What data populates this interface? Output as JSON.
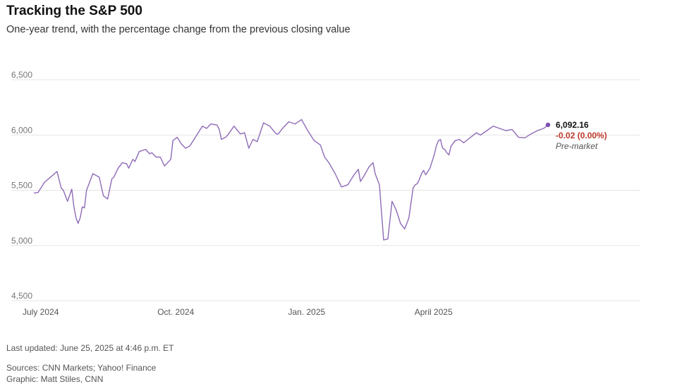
{
  "title": "Tracking the S&P 500",
  "subtitle": "One-year trend, with the percentage change from the previous closing value",
  "footer": {
    "updated": "Last updated: June 25, 2025 at 4:46 p.m. ET",
    "sources": "Sources: CNN Markets; Yahoo! Finance",
    "graphic": "Graphic: Matt Stiles, CNN"
  },
  "colors": {
    "line": "#8e6bb7",
    "dot": "#7b4fb3",
    "negative": "#c0392b"
  },
  "chart_data": {
    "type": "line",
    "title": "Tracking the S&P 500",
    "xlabel": "",
    "ylabel": "",
    "ylim": [
      4500,
      6500
    ],
    "xlim": [
      0,
      246
    ],
    "y_ticks": [
      4500,
      5000,
      5500,
      6000,
      6500
    ],
    "y_tick_labels": [
      "4,500",
      "5,000",
      "5,500",
      "6,000",
      "6,500"
    ],
    "x_ticks": [
      {
        "label": "July 2024",
        "x": 0
      },
      {
        "label": "Oct. 2024",
        "x": 64
      },
      {
        "label": "Jan. 2025",
        "x": 126
      },
      {
        "label": "April 2025",
        "x": 186
      }
    ],
    "grid": true,
    "series": [
      {
        "name": "S&P 500",
        "x": [
          0,
          2,
          5,
          8,
          11,
          13,
          14,
          16,
          18,
          19,
          20,
          21,
          22,
          23,
          24,
          25,
          26,
          27,
          28,
          30,
          31,
          33,
          35,
          37,
          38,
          40,
          42,
          44,
          45,
          47,
          48,
          50,
          53,
          55,
          56,
          58,
          60,
          62,
          65,
          66,
          68,
          70,
          72,
          74,
          76,
          78,
          80,
          82,
          84,
          87,
          88,
          89,
          91,
          92,
          95,
          98,
          100,
          102,
          104,
          106,
          109,
          112,
          115,
          116,
          118,
          121,
          124,
          127,
          130,
          133,
          136,
          138,
          140,
          143,
          146,
          149,
          152,
          154,
          155,
          157,
          159,
          161,
          162,
          164,
          166,
          168,
          170,
          172,
          174,
          176,
          178,
          180,
          181,
          182,
          183,
          184,
          185,
          186,
          188,
          190,
          191,
          192,
          193,
          194,
          195,
          196,
          197,
          198,
          200,
          202,
          204,
          206,
          208,
          210,
          212,
          215,
          218,
          221,
          224,
          227,
          230,
          233,
          236,
          239,
          242,
          244
        ],
        "values": [
          5475,
          5480,
          5570,
          5620,
          5670,
          5520,
          5500,
          5400,
          5510,
          5350,
          5250,
          5200,
          5250,
          5350,
          5340,
          5500,
          5550,
          5600,
          5650,
          5630,
          5620,
          5450,
          5420,
          5600,
          5620,
          5700,
          5750,
          5740,
          5700,
          5780,
          5760,
          5850,
          5870,
          5830,
          5840,
          5800,
          5800,
          5720,
          5780,
          5950,
          5980,
          5920,
          5880,
          5900,
          5960,
          6020,
          6080,
          6060,
          6100,
          6090,
          6050,
          5960,
          5980,
          6000,
          6080,
          6010,
          6020,
          5880,
          5960,
          5940,
          6110,
          6080,
          6010,
          6010,
          6060,
          6120,
          6100,
          6140,
          6040,
          5950,
          5910,
          5800,
          5750,
          5650,
          5530,
          5550,
          5640,
          5690,
          5580,
          5640,
          5710,
          5750,
          5650,
          5550,
          5050,
          5060,
          5400,
          5320,
          5200,
          5150,
          5250,
          5520,
          5550,
          5560,
          5600,
          5650,
          5680,
          5640,
          5700,
          5820,
          5900,
          5950,
          5960,
          5880,
          5870,
          5840,
          5820,
          5900,
          5950,
          5960,
          5930,
          5960,
          5990,
          6020,
          6000,
          6040,
          6080,
          6060,
          6040,
          6050,
          5980,
          5975,
          6010,
          6040,
          6060,
          6092.16
        ]
      }
    ],
    "last_point": {
      "value": "6,092.16",
      "change": "-0.02 (0.00%)",
      "note": "Pre-market"
    }
  }
}
